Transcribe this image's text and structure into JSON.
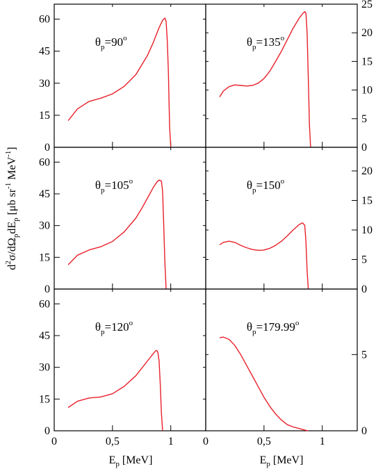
{
  "figure": {
    "ylabel": {
      "d": "d",
      "sup2": "2",
      "sigma": "σ/dΩ",
      "subp1": "p",
      "dE": "dE",
      "subp2": "p",
      "units": " [μb sr",
      "unit_sup": "-1",
      "unit_tail": " MeV",
      "unit_sup2": "-1",
      "close": "]"
    },
    "xlabel": {
      "E": "E",
      "sub": "p",
      "units": " [MeV]"
    },
    "line_color": "#e8202a"
  },
  "chart_data": [
    {
      "type": "line",
      "annotation": {
        "theta": "θ",
        "sub": "p",
        "value": "=90",
        "sup": "o"
      },
      "xlim": [
        0,
        1.3
      ],
      "ylim": [
        0,
        67
      ],
      "yticks": [
        0,
        15,
        30,
        45,
        60
      ],
      "ytick_labels": [
        "0",
        "15",
        "30",
        "45",
        "60"
      ],
      "yaxis_side": "left",
      "x": [
        0.12,
        0.2,
        0.3,
        0.4,
        0.5,
        0.6,
        0.7,
        0.8,
        0.85,
        0.9,
        0.93,
        0.95,
        0.96,
        0.97,
        0.98,
        0.99,
        1.0
      ],
      "y": [
        12.5,
        18,
        21.5,
        23,
        25,
        28.5,
        34,
        43,
        49,
        56,
        59.5,
        60.5,
        59,
        50,
        35,
        10,
        0
      ]
    },
    {
      "type": "line",
      "annotation": {
        "theta": "θ",
        "sub": "p",
        "value": "=135",
        "sup": "o"
      },
      "xlim": [
        0,
        1.3
      ],
      "ylim": [
        0,
        25
      ],
      "yticks": [
        0,
        5,
        10,
        15,
        20,
        25
      ],
      "ytick_labels": [
        "0",
        "5",
        "10",
        "15",
        "20",
        "25"
      ],
      "yaxis_side": "right",
      "x": [
        0.12,
        0.15,
        0.2,
        0.25,
        0.3,
        0.35,
        0.4,
        0.45,
        0.5,
        0.55,
        0.6,
        0.65,
        0.7,
        0.75,
        0.8,
        0.83,
        0.85,
        0.86,
        0.87,
        0.88,
        0.89,
        0.9
      ],
      "y": [
        8.8,
        9.8,
        10.6,
        10.9,
        10.8,
        10.7,
        10.8,
        11.2,
        12,
        13.3,
        15,
        16.8,
        18.8,
        20.8,
        22.5,
        23.3,
        23.7,
        23.4,
        20,
        12,
        4,
        0
      ]
    },
    {
      "type": "line",
      "annotation": {
        "theta": "θ",
        "sub": "p",
        "value": "=105",
        "sup": "o"
      },
      "xlim": [
        0,
        1.3
      ],
      "ylim": [
        0,
        67
      ],
      "yticks": [
        0,
        15,
        30,
        45,
        60
      ],
      "ytick_labels": [
        "0",
        "15",
        "30",
        "45",
        "60"
      ],
      "yaxis_side": "left",
      "x": [
        0.12,
        0.2,
        0.3,
        0.4,
        0.5,
        0.6,
        0.7,
        0.75,
        0.8,
        0.85,
        0.88,
        0.9,
        0.92,
        0.93,
        0.94,
        0.95,
        0.96
      ],
      "y": [
        11.5,
        16,
        18.5,
        20,
        22.5,
        27,
        33.5,
        38,
        43,
        48,
        50.5,
        51.5,
        51,
        46,
        30,
        12,
        0
      ]
    },
    {
      "type": "line",
      "annotation": {
        "theta": "θ",
        "sub": "p",
        "value": "=150",
        "sup": "o"
      },
      "xlim": [
        0,
        1.3
      ],
      "ylim": [
        0,
        24
      ],
      "yticks": [
        0,
        5,
        10,
        15,
        20
      ],
      "ytick_labels": [
        "0",
        "5",
        "10",
        "15",
        "20"
      ],
      "yaxis_side": "right",
      "x": [
        0.12,
        0.15,
        0.2,
        0.25,
        0.3,
        0.35,
        0.4,
        0.45,
        0.5,
        0.55,
        0.6,
        0.65,
        0.7,
        0.75,
        0.8,
        0.83,
        0.85,
        0.86,
        0.87,
        0.88
      ],
      "y": [
        7.5,
        7.9,
        8.1,
        7.9,
        7.4,
        7,
        6.7,
        6.55,
        6.6,
        6.9,
        7.4,
        8.1,
        9,
        10,
        10.9,
        11.2,
        10.8,
        8,
        3,
        0
      ]
    },
    {
      "type": "line",
      "annotation": {
        "theta": "θ",
        "sub": "p",
        "value": "=120",
        "sup": "o"
      },
      "xlim": [
        0,
        1.3
      ],
      "ylim": [
        0,
        67
      ],
      "yticks": [
        0,
        15,
        30,
        45,
        60
      ],
      "ytick_labels": [
        "0",
        "15",
        "30",
        "45",
        "60"
      ],
      "yaxis_side": "left",
      "x": [
        0.12,
        0.2,
        0.3,
        0.4,
        0.5,
        0.6,
        0.7,
        0.75,
        0.8,
        0.85,
        0.87,
        0.88,
        0.89,
        0.9,
        0.91,
        0.92,
        0.93
      ],
      "y": [
        11,
        14,
        15.5,
        16,
        17.5,
        21,
        26,
        29.5,
        33,
        36.5,
        37.8,
        38,
        37,
        33,
        22,
        8,
        0
      ]
    },
    {
      "type": "line",
      "annotation": {
        "theta": "θ",
        "sub": "p",
        "value": "=179.99",
        "sup": "o"
      },
      "xlim": [
        0,
        1.3
      ],
      "ylim": [
        0,
        9.3
      ],
      "yticks": [
        0,
        5
      ],
      "ytick_labels": [
        "0",
        "5"
      ],
      "yaxis_side": "right",
      "x": [
        0.12,
        0.15,
        0.2,
        0.25,
        0.3,
        0.35,
        0.4,
        0.45,
        0.5,
        0.55,
        0.6,
        0.65,
        0.7,
        0.75,
        0.8,
        0.85,
        0.88
      ],
      "y": [
        6.1,
        6.15,
        6,
        5.6,
        5.0,
        4.3,
        3.6,
        2.9,
        2.2,
        1.6,
        1.1,
        0.7,
        0.4,
        0.25,
        0.15,
        0.05,
        0
      ]
    }
  ],
  "xaxis": {
    "ticks": [
      0,
      0.5,
      1
    ],
    "tick_labels": [
      "0",
      "0,5",
      "1"
    ]
  }
}
